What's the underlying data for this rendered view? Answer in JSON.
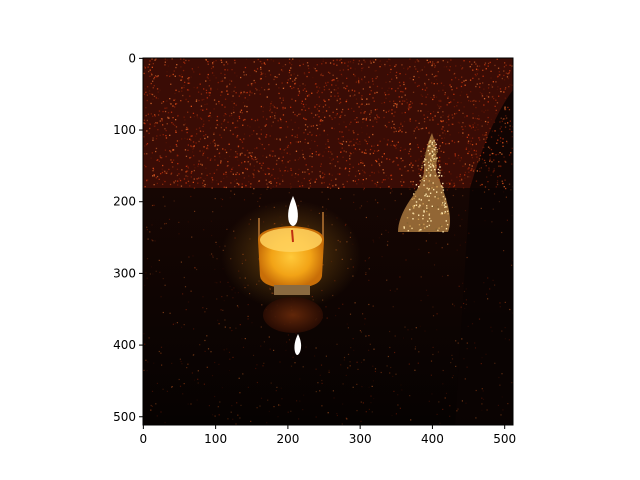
{
  "chart_data": {
    "type": "image",
    "title": "",
    "xlabel": "",
    "ylabel": "",
    "x_ticks": [
      "0",
      "100",
      "200",
      "300",
      "400",
      "500"
    ],
    "y_ticks": [
      "0",
      "100",
      "200",
      "300",
      "400",
      "500"
    ],
    "x_tick_values": [
      0,
      100,
      200,
      300,
      400,
      500
    ],
    "y_tick_values": [
      0,
      100,
      200,
      300,
      400,
      500
    ],
    "xlim": [
      -0.5,
      511.5
    ],
    "ylim": [
      511.5,
      -0.5
    ],
    "grid": false,
    "image_content": {
      "scene": "noisy render of a lit candle in a glass on a dark table with a bell shape in the background",
      "colors": {
        "background_wall": "#3a0a04",
        "noise_red": "#c0300c",
        "table": "#0b0402",
        "candle_glow": "#ffb21a",
        "flame": "#ffffff",
        "bell": "#b88a4c"
      }
    }
  }
}
